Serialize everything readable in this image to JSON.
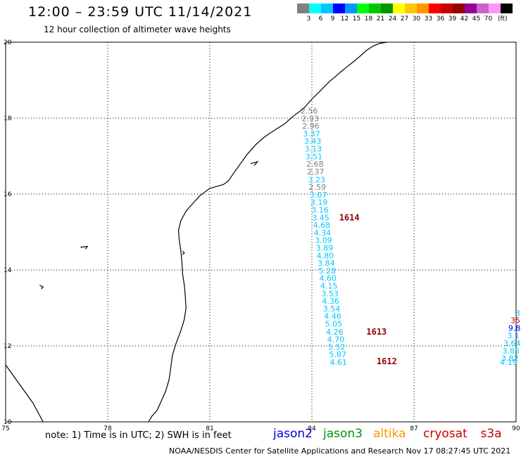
{
  "header": {
    "title": "12:00 – 23:59 UTC 11/14/2021",
    "subtitle": "12 hour collection of altimeter wave heights"
  },
  "scale": {
    "colors": [
      "#808080",
      "#00ffff",
      "#00c8ff",
      "#0000ff",
      "#0096ff",
      "#00ff00",
      "#00c800",
      "#009600",
      "#ffff00",
      "#ffc800",
      "#ff9600",
      "#ff0000",
      "#c80000",
      "#960000",
      "#960096",
      "#c864c8",
      "#ff96ff",
      "#000000"
    ],
    "labels": [
      "3",
      "6",
      "9",
      "12",
      "15",
      "18",
      "21",
      "24",
      "27",
      "30",
      "33",
      "36",
      "39",
      "42",
      "45",
      "70"
    ],
    "unit": "(ft)"
  },
  "axes": {
    "x_ticks": [
      "75",
      "78",
      "81",
      "84",
      "87",
      "90"
    ],
    "y_ticks": [
      "10",
      "12",
      "14",
      "16",
      "18",
      "20"
    ]
  },
  "track_points": [
    {
      "lon": 83.92,
      "lat": 18.12,
      "v": "2.56",
      "c": "#808080"
    },
    {
      "lon": 83.95,
      "lat": 17.92,
      "v": "2.93",
      "c": "#808080"
    },
    {
      "lon": 83.97,
      "lat": 17.72,
      "v": "2.96",
      "c": "#808080"
    },
    {
      "lon": 83.99,
      "lat": 17.52,
      "v": "3.37",
      "c": "#00c8ff"
    },
    {
      "lon": 84.02,
      "lat": 17.32,
      "v": "3.43",
      "c": "#00c8ff"
    },
    {
      "lon": 84.04,
      "lat": 17.12,
      "v": "3.13",
      "c": "#00c8ff"
    },
    {
      "lon": 84.06,
      "lat": 16.92,
      "v": "3.51",
      "c": "#00c8ff"
    },
    {
      "lon": 84.09,
      "lat": 16.72,
      "v": "2.68",
      "c": "#808080"
    },
    {
      "lon": 84.11,
      "lat": 16.52,
      "v": "2.37",
      "c": "#808080"
    },
    {
      "lon": 84.14,
      "lat": 16.31,
      "v": "3.23",
      "c": "#00c8ff"
    },
    {
      "lon": 84.16,
      "lat": 16.11,
      "v": "2.59",
      "c": "#808080"
    },
    {
      "lon": 84.19,
      "lat": 15.91,
      "v": "3.07",
      "c": "#00c8ff"
    },
    {
      "lon": 84.21,
      "lat": 15.71,
      "v": "3.19",
      "c": "#00c8ff"
    },
    {
      "lon": 84.24,
      "lat": 15.51,
      "v": "3.16",
      "c": "#00c8ff"
    },
    {
      "lon": 84.26,
      "lat": 15.31,
      "v": "3.45",
      "c": "#00c8ff"
    },
    {
      "lon": 84.29,
      "lat": 15.11,
      "v": "4.68",
      "c": "#00c8ff"
    },
    {
      "lon": 84.31,
      "lat": 14.91,
      "v": "4.34",
      "c": "#00c8ff"
    },
    {
      "lon": 84.34,
      "lat": 14.71,
      "v": "3.09",
      "c": "#00c8ff"
    },
    {
      "lon": 84.37,
      "lat": 14.51,
      "v": "3.89",
      "c": "#00c8ff"
    },
    {
      "lon": 84.39,
      "lat": 14.31,
      "v": "4.80",
      "c": "#00c8ff"
    },
    {
      "lon": 84.42,
      "lat": 14.11,
      "v": "3.84",
      "c": "#00c8ff"
    },
    {
      "lon": 84.45,
      "lat": 13.91,
      "v": "5.28",
      "c": "#00c8ff"
    },
    {
      "lon": 84.47,
      "lat": 13.71,
      "v": "4.60",
      "c": "#00c8ff"
    },
    {
      "lon": 84.5,
      "lat": 13.51,
      "v": "4.15",
      "c": "#00c8ff"
    },
    {
      "lon": 84.53,
      "lat": 13.31,
      "v": "3.53",
      "c": "#00c8ff"
    },
    {
      "lon": 84.55,
      "lat": 13.11,
      "v": "4.36",
      "c": "#00c8ff"
    },
    {
      "lon": 84.58,
      "lat": 12.91,
      "v": "3.54",
      "c": "#00c8ff"
    },
    {
      "lon": 84.61,
      "lat": 12.71,
      "v": "4.46",
      "c": "#00c8ff"
    },
    {
      "lon": 84.64,
      "lat": 12.51,
      "v": "5.05",
      "c": "#00c8ff"
    },
    {
      "lon": 84.67,
      "lat": 12.3,
      "v": "4.26",
      "c": "#00c8ff"
    },
    {
      "lon": 84.7,
      "lat": 12.1,
      "v": "4.70",
      "c": "#00c8ff"
    },
    {
      "lon": 84.73,
      "lat": 11.9,
      "v": "5.52",
      "c": "#00c8ff"
    },
    {
      "lon": 84.76,
      "lat": 11.7,
      "v": "5.87",
      "c": "#00c8ff"
    },
    {
      "lon": 84.78,
      "lat": 11.5,
      "v": "4.61",
      "c": "#00c8ff"
    },
    {
      "lon": 90.05,
      "lat": 12.8,
      "v": "3",
      "c": "#00c8ff"
    },
    {
      "lon": 89.98,
      "lat": 12.6,
      "v": "35",
      "c": "#c80000"
    },
    {
      "lon": 89.95,
      "lat": 12.4,
      "v": "9.8",
      "c": "#0000ff"
    },
    {
      "lon": 89.92,
      "lat": 12.2,
      "v": "3.1",
      "c": "#00c8ff"
    },
    {
      "lon": 89.88,
      "lat": 12.0,
      "v": "3.64",
      "c": "#00c8ff"
    },
    {
      "lon": 89.85,
      "lat": 11.8,
      "v": "3.85",
      "c": "#00c8ff"
    },
    {
      "lon": 89.82,
      "lat": 11.6,
      "v": "3.82",
      "c": "#00c8ff"
    },
    {
      "lon": 89.78,
      "lat": 11.5,
      "v": "4.19",
      "c": "#00c8ff"
    }
  ],
  "time_labels": [
    {
      "lon": 85.1,
      "lat": 15.31,
      "v": "1614",
      "c": "#960000"
    },
    {
      "lon": 85.9,
      "lat": 12.3,
      "v": "1613",
      "c": "#960000"
    },
    {
      "lon": 86.2,
      "lat": 11.52,
      "v": "1612",
      "c": "#960000"
    }
  ],
  "coastline": [
    [
      [
        86.21,
        20.0
      ],
      [
        86.0,
        19.97
      ],
      [
        85.8,
        19.9
      ],
      [
        85.6,
        19.78
      ],
      [
        85.4,
        19.62
      ],
      [
        85.2,
        19.47
      ],
      [
        85.0,
        19.33
      ],
      [
        84.85,
        19.22
      ],
      [
        84.7,
        19.1
      ],
      [
        84.5,
        18.95
      ],
      [
        84.25,
        18.72
      ],
      [
        84.0,
        18.5
      ],
      [
        83.75,
        18.25
      ],
      [
        83.45,
        18.05
      ],
      [
        83.2,
        17.85
      ],
      [
        82.9,
        17.68
      ],
      [
        82.6,
        17.5
      ],
      [
        82.35,
        17.3
      ],
      [
        82.1,
        17.05
      ],
      [
        81.9,
        16.8
      ],
      [
        81.7,
        16.55
      ],
      [
        81.55,
        16.35
      ],
      [
        81.4,
        16.25
      ],
      [
        81.2,
        16.2
      ],
      [
        81.0,
        16.15
      ],
      [
        80.85,
        16.05
      ],
      [
        80.7,
        15.95
      ],
      [
        80.5,
        15.75
      ],
      [
        80.3,
        15.55
      ],
      [
        80.15,
        15.3
      ],
      [
        80.08,
        15.05
      ],
      [
        80.1,
        14.8
      ],
      [
        80.15,
        14.5
      ],
      [
        80.18,
        14.2
      ],
      [
        80.2,
        13.9
      ],
      [
        80.25,
        13.6
      ],
      [
        80.28,
        13.3
      ],
      [
        80.3,
        13.0
      ],
      [
        80.25,
        12.7
      ],
      [
        80.15,
        12.4
      ],
      [
        80.0,
        12.05
      ],
      [
        79.9,
        11.75
      ],
      [
        79.85,
        11.4
      ],
      [
        79.8,
        11.1
      ],
      [
        79.7,
        10.8
      ],
      [
        79.6,
        10.6
      ],
      [
        79.45,
        10.3
      ],
      [
        79.3,
        10.15
      ],
      [
        79.2,
        10.0
      ]
    ],
    [
      [
        75.0,
        11.5
      ],
      [
        75.4,
        11.0
      ],
      [
        75.8,
        10.5
      ],
      [
        76.1,
        10.0
      ]
    ],
    [
      [
        82.2,
        16.8
      ],
      [
        82.4,
        16.85
      ],
      [
        82.3,
        16.75
      ]
    ],
    [
      [
        80.2,
        14.5
      ],
      [
        80.25,
        14.45
      ],
      [
        80.2,
        14.4
      ]
    ],
    [
      [
        77.2,
        14.6
      ],
      [
        77.4,
        14.62
      ],
      [
        77.35,
        14.55
      ]
    ],
    [
      [
        76.0,
        13.6
      ],
      [
        76.1,
        13.55
      ],
      [
        76.05,
        13.5
      ]
    ]
  ],
  "notes": {
    "note": "note:  1) Time is in UTC;  2) SWH is in feet",
    "footer": "NOAA/NESDIS Center for Satellite Applications and Research    Nov 17 08:27:45 UTC 2021"
  },
  "legend": [
    {
      "label": "jason2",
      "color": "#0000dd"
    },
    {
      "label": "jason3",
      "color": "#009600"
    },
    {
      "label": "altika",
      "color": "#ff9600"
    },
    {
      "label": "cryosat",
      "color": "#cc0000"
    },
    {
      "label": "s3a",
      "color": "#c80000"
    }
  ]
}
